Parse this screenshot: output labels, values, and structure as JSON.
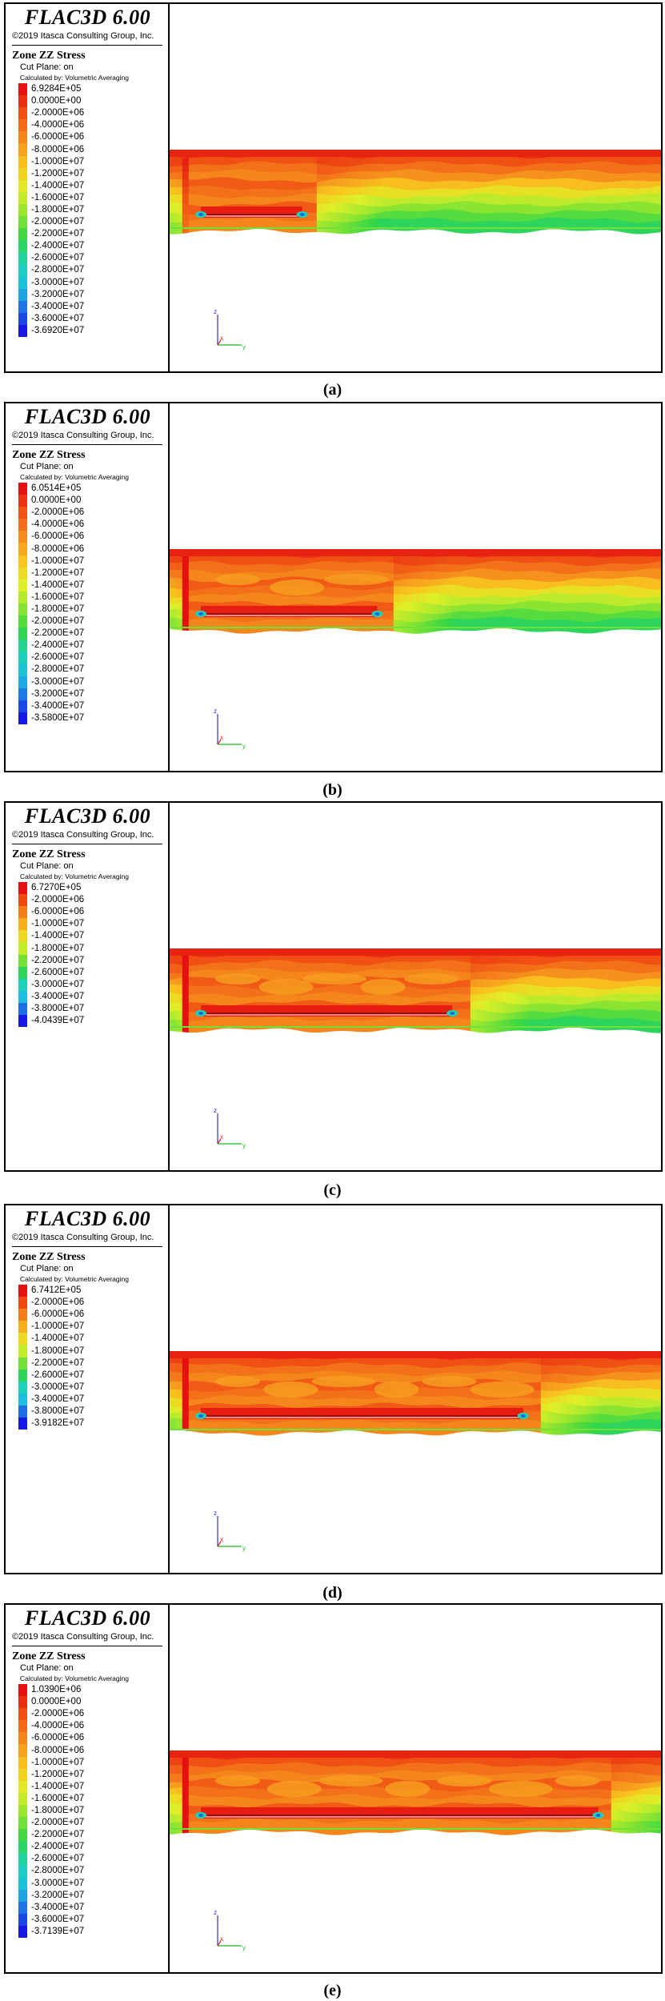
{
  "panels": [
    {
      "caption": "(a)",
      "app_title": "FLAC3D 6.00",
      "copyright": "©2019 Itasca Consulting Group, Inc.",
      "plot_title": "Zone ZZ Stress",
      "cut_plane": "Cut Plane: on",
      "calculated_by": "Calculated by: Volumetric Averaging",
      "legend": [
        "6.9284E+05",
        "0.0000E+00",
        "-2.0000E+06",
        "-4.0000E+06",
        "-6.0000E+06",
        "-8.0000E+06",
        "-1.0000E+07",
        "-1.2000E+07",
        "-1.4000E+07",
        "-1.6000E+07",
        "-1.8000E+07",
        "-2.0000E+07",
        "-2.2000E+07",
        "-2.4000E+07",
        "-2.6000E+07",
        "-2.8000E+07",
        "-3.0000E+07",
        "-3.2000E+07",
        "-3.4000E+07",
        "-3.6000E+07",
        "-3.6920E+07"
      ],
      "excavation_fraction": 0.22,
      "axis_labels": {
        "z": "z",
        "x": "x",
        "y": "y"
      }
    },
    {
      "caption": "(b)",
      "app_title": "FLAC3D 6.00",
      "copyright": "©2019 Itasca Consulting Group, Inc.",
      "plot_title": "Zone ZZ Stress",
      "cut_plane": "Cut Plane: on",
      "calculated_by": "Calculated by: Volumetric Averaging",
      "legend": [
        "6.0514E+05",
        "0.0000E+00",
        "-2.0000E+06",
        "-4.0000E+06",
        "-6.0000E+06",
        "-8.0000E+06",
        "-1.0000E+07",
        "-1.2000E+07",
        "-1.4000E+07",
        "-1.6000E+07",
        "-1.8000E+07",
        "-2.0000E+07",
        "-2.2000E+07",
        "-2.4000E+07",
        "-2.6000E+07",
        "-2.8000E+07",
        "-3.0000E+07",
        "-3.2000E+07",
        "-3.4000E+07",
        "-3.5800E+07"
      ],
      "excavation_fraction": 0.4,
      "axis_labels": {
        "z": "z",
        "x": "x",
        "y": "y"
      }
    },
    {
      "caption": "(c)",
      "app_title": "FLAC3D 6.00",
      "copyright": "©2019 Itasca Consulting Group, Inc.",
      "plot_title": "Zone ZZ Stress",
      "cut_plane": "Cut Plane: on",
      "calculated_by": "Calculated by: Volumetric Averaging",
      "legend": [
        "6.7270E+05",
        "-2.0000E+06",
        "-6.0000E+06",
        "-1.0000E+07",
        "-1.4000E+07",
        "-1.8000E+07",
        "-2.2000E+07",
        "-2.6000E+07",
        "-3.0000E+07",
        "-3.4000E+07",
        "-3.8000E+07",
        "-4.0439E+07"
      ],
      "excavation_fraction": 0.58,
      "axis_labels": {
        "z": "z",
        "x": "x",
        "y": "y"
      }
    },
    {
      "caption": "(d)",
      "app_title": "FLAC3D 6.00",
      "copyright": "©2019 Itasca Consulting Group, Inc.",
      "plot_title": "Zone ZZ Stress",
      "cut_plane": "Cut Plane: on",
      "calculated_by": "Calculated by: Volumetric Averaging",
      "legend": [
        "6.7412E+05",
        "-2.0000E+06",
        "-6.0000E+06",
        "-1.0000E+07",
        "-1.4000E+07",
        "-1.8000E+07",
        "-2.2000E+07",
        "-2.6000E+07",
        "-3.0000E+07",
        "-3.4000E+07",
        "-3.8000E+07",
        "-3.9182E+07"
      ],
      "excavation_fraction": 0.75,
      "axis_labels": {
        "z": "z",
        "x": "x",
        "y": "y"
      }
    },
    {
      "caption": "(e)",
      "app_title": "FLAC3D 6.00",
      "copyright": "©2019 Itasca Consulting Group, Inc.",
      "plot_title": "Zone ZZ Stress",
      "cut_plane": "Cut Plane: on",
      "calculated_by": "Calculated by: Volumetric Averaging",
      "legend": [
        "1.0390E+06",
        "0.0000E+00",
        "-2.0000E+06",
        "-4.0000E+06",
        "-6.0000E+06",
        "-8.0000E+06",
        "-1.0000E+07",
        "-1.2000E+07",
        "-1.4000E+07",
        "-1.6000E+07",
        "-1.8000E+07",
        "-2.0000E+07",
        "-2.2000E+07",
        "-2.4000E+07",
        "-2.6000E+07",
        "-2.8000E+07",
        "-3.0000E+07",
        "-3.2000E+07",
        "-3.4000E+07",
        "-3.6000E+07",
        "-3.7139E+07"
      ],
      "excavation_fraction": 0.93,
      "axis_labels": {
        "z": "z",
        "x": "x",
        "y": "y"
      }
    }
  ]
}
